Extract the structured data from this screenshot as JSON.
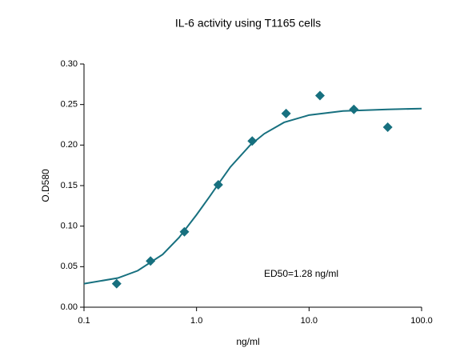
{
  "chart_data": {
    "type": "scatter",
    "title": "IL-6 activity using T1165 cells",
    "xlabel": "ng/ml",
    "ylabel": "O.D580",
    "annotation": "ED50=1.28 ng/ml",
    "xscale": "log",
    "xlim": [
      0.1,
      100
    ],
    "xticks": [
      0.1,
      {
        "value": 1,
        "label": "1.0"
      },
      {
        "value": 10,
        "label": "10.0"
      },
      {
        "value": 100,
        "label": "100.0"
      }
    ],
    "ylim": [
      0,
      0.3
    ],
    "yticks": [
      {
        "value": 0,
        "label": "0.00"
      },
      0.05,
      {
        "value": 0.1,
        "label": "0.10"
      },
      0.15,
      {
        "value": 0.2,
        "label": "0.20"
      },
      0.25,
      {
        "value": 0.3,
        "label": "0.30"
      }
    ],
    "series": [
      {
        "color": "#17707f",
        "marker": "diamond",
        "x": [
          0.195,
          0.39,
          0.78,
          1.56,
          3.125,
          6.25,
          12.5,
          25,
          50
        ],
        "values": [
          0.029,
          0.057,
          0.093,
          0.151,
          0.205,
          0.239,
          0.261,
          0.244,
          0.222
        ]
      },
      {
        "color": "#17707f",
        "marker": "line",
        "x": [
          0.1,
          0.2,
          0.3,
          0.5,
          0.7,
          1,
          1.3,
          1.6,
          2,
          3,
          4,
          6,
          10,
          20,
          50,
          100
        ],
        "values": [
          0.029,
          0.036,
          0.045,
          0.065,
          0.086,
          0.114,
          0.136,
          0.154,
          0.173,
          0.2,
          0.214,
          0.228,
          0.237,
          0.242,
          0.244,
          0.245
        ]
      }
    ]
  }
}
